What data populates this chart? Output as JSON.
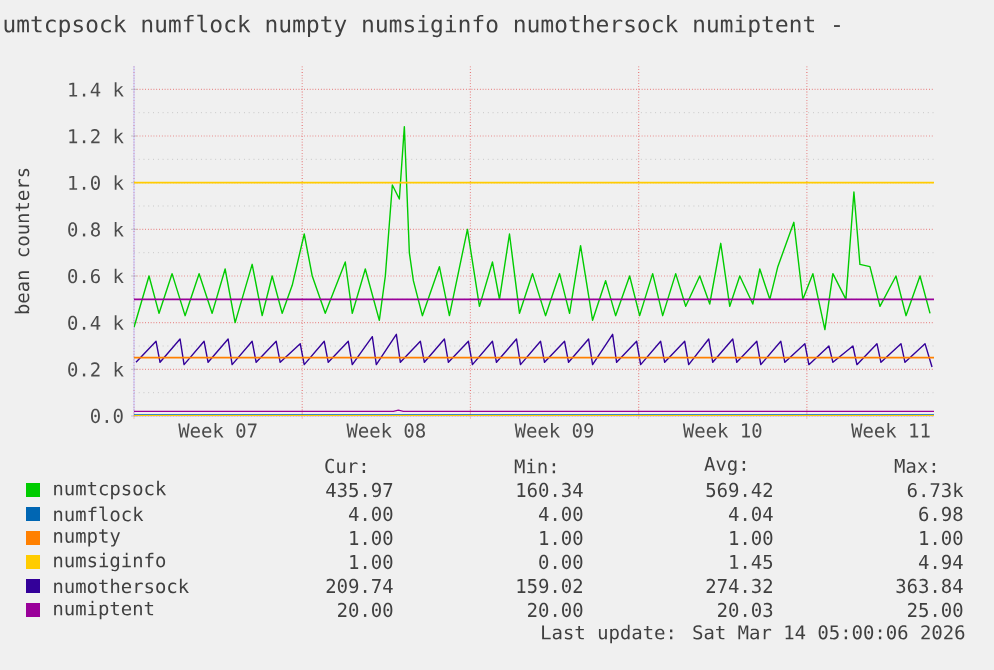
{
  "chart_data": {
    "type": "line",
    "title": "umtcpsock numflock numpty numsiginfo numothersock numiptent -",
    "ylabel": "bean counters",
    "xlim": [
      "2026-02-09T00:00",
      "2026-03-14T07:00"
    ],
    "xticks": [
      {
        "value": "2026-02-09T00:00",
        "label": null
      },
      {
        "value": "2026-02-12T12:00",
        "label": "Week 07"
      },
      {
        "value": "2026-02-16T00:00",
        "label": null
      },
      {
        "value": "2026-02-19T12:00",
        "label": "Week 08"
      },
      {
        "value": "2026-02-23T00:00",
        "label": null
      },
      {
        "value": "2026-02-26T12:00",
        "label": "Week 09"
      },
      {
        "value": "2026-03-02T00:00",
        "label": null
      },
      {
        "value": "2026-03-05T12:00",
        "label": "Week 10"
      },
      {
        "value": "2026-03-09T00:00",
        "label": null
      },
      {
        "value": "2026-03-12T12:00",
        "label": "Week 11"
      }
    ],
    "ylim": [
      0,
      1500
    ],
    "yticks": [
      {
        "value": 0,
        "label": "0.0"
      },
      {
        "value": 200,
        "label": "0.2 k"
      },
      {
        "value": 400,
        "label": "0.4 k"
      },
      {
        "value": 600,
        "label": "0.6 k"
      },
      {
        "value": 800,
        "label": "0.8 k"
      },
      {
        "value": 1000,
        "label": "1.0 k"
      },
      {
        "value": 1200,
        "label": "1.2 k"
      },
      {
        "value": 1400,
        "label": "1.4 k"
      }
    ],
    "grid": true,
    "legend": "bottom",
    "series": [
      {
        "name": "numtcpsock",
        "color": "#00cc00",
        "x": [
          "2026-02-09T00:00",
          "2026-02-09T15:00",
          "2026-02-10T01:00",
          "2026-02-10T14:00",
          "2026-02-11T03:00",
          "2026-02-11T17:00",
          "2026-02-12T06:00",
          "2026-02-12T19:00",
          "2026-02-13T05:00",
          "2026-02-13T22:00",
          "2026-02-14T08:00",
          "2026-02-14T18:00",
          "2026-02-15T04:00",
          "2026-02-15T14:00",
          "2026-02-16T02:00",
          "2026-02-16T10:00",
          "2026-02-16T23:00",
          "2026-02-17T19:00",
          "2026-02-18T02:00",
          "2026-02-18T15:00",
          "2026-02-19T05:00",
          "2026-02-19T11:00",
          "2026-02-19T18:00",
          "2026-02-20T01:00",
          "2026-02-20T06:00",
          "2026-02-20T11:00",
          "2026-02-20T15:00",
          "2026-02-21T00:00",
          "2026-02-21T17:00",
          "2026-02-22T03:00",
          "2026-02-22T21:00",
          "2026-02-23T09:00",
          "2026-02-23T22:00",
          "2026-02-24T05:00",
          "2026-02-24T15:00",
          "2026-02-25T01:00",
          "2026-02-25T14:00",
          "2026-02-26T03:00",
          "2026-02-26T17:00",
          "2026-02-27T03:00",
          "2026-02-27T14:00",
          "2026-02-28T02:00",
          "2026-02-28T15:00",
          "2026-03-01T01:00",
          "2026-03-01T15:00",
          "2026-03-02T01:00",
          "2026-03-02T14:00",
          "2026-03-03T00:00",
          "2026-03-03T13:00",
          "2026-03-03T23:00",
          "2026-03-04T13:00",
          "2026-03-04T23:00",
          "2026-03-05T10:00",
          "2026-03-05T19:00",
          "2026-03-06T05:00",
          "2026-03-06T18:00",
          "2026-03-07T01:00",
          "2026-03-07T11:00",
          "2026-03-07T19:00",
          "2026-03-08T11:00",
          "2026-03-08T20:00",
          "2026-03-09T06:00",
          "2026-03-09T18:00",
          "2026-03-10T02:00",
          "2026-03-10T15:00",
          "2026-03-10T23:00",
          "2026-03-11T05:00",
          "2026-03-11T15:00",
          "2026-03-12T01:00",
          "2026-03-12T17:00",
          "2026-03-13T03:00",
          "2026-03-13T17:00",
          "2026-03-14T03:00"
        ],
        "values": [
          380,
          600,
          440,
          610,
          430,
          610,
          440,
          630,
          400,
          650,
          430,
          600,
          440,
          560,
          780,
          600,
          440,
          660,
          440,
          630,
          410,
          600,
          990,
          930,
          1240,
          700,
          580,
          430,
          640,
          430,
          800,
          470,
          660,
          500,
          780,
          440,
          610,
          430,
          610,
          440,
          730,
          410,
          580,
          430,
          600,
          430,
          610,
          430,
          610,
          470,
          600,
          480,
          740,
          470,
          600,
          480,
          630,
          500,
          640,
          830,
          500,
          610,
          370,
          610,
          500,
          960,
          650,
          640,
          470,
          600,
          430,
          600,
          440
        ]
      },
      {
        "name": "numflock",
        "color": "#0066b3",
        "x": [
          "2026-02-09T00:00",
          "2026-03-14T07:00"
        ],
        "values": [
          4,
          4
        ]
      },
      {
        "name": "numpty",
        "color": "#ff8000",
        "values": [
          null
        ]
      },
      {
        "name": "numsiginfo",
        "color": "#ffcc00",
        "x": [
          "2026-02-09T00:00",
          "2026-03-14T07:00"
        ],
        "values": [
          1,
          1
        ]
      },
      {
        "name": "numothersock",
        "color": "#330099",
        "x": [
          "2026-02-09T02:00",
          "2026-02-09T22:00",
          "2026-02-10T02:00",
          "2026-02-10T22:00",
          "2026-02-11T02:00",
          "2026-02-11T22:00",
          "2026-02-12T02:00",
          "2026-02-12T22:00",
          "2026-02-13T02:00",
          "2026-02-13T22:00",
          "2026-02-14T02:00",
          "2026-02-14T22:00",
          "2026-02-15T02:00",
          "2026-02-15T22:00",
          "2026-02-16T02:00",
          "2026-02-16T22:00",
          "2026-02-17T02:00",
          "2026-02-17T22:00",
          "2026-02-18T02:00",
          "2026-02-18T22:00",
          "2026-02-19T02:00",
          "2026-02-19T22:00",
          "2026-02-20T02:00",
          "2026-02-20T22:00",
          "2026-02-21T02:00",
          "2026-02-21T22:00",
          "2026-02-22T02:00",
          "2026-02-22T22:00",
          "2026-02-23T02:00",
          "2026-02-23T22:00",
          "2026-02-24T02:00",
          "2026-02-24T22:00",
          "2026-02-25T02:00",
          "2026-02-25T22:00",
          "2026-02-26T02:00",
          "2026-02-26T22:00",
          "2026-02-27T02:00",
          "2026-02-27T22:00",
          "2026-02-28T02:00",
          "2026-02-28T22:00",
          "2026-03-01T02:00",
          "2026-03-01T22:00",
          "2026-03-02T02:00",
          "2026-03-02T22:00",
          "2026-03-03T02:00",
          "2026-03-03T22:00",
          "2026-03-04T02:00",
          "2026-03-04T22:00",
          "2026-03-05T02:00",
          "2026-03-05T22:00",
          "2026-03-06T02:00",
          "2026-03-06T22:00",
          "2026-03-07T02:00",
          "2026-03-07T22:00",
          "2026-03-08T02:00",
          "2026-03-08T22:00",
          "2026-03-09T02:00",
          "2026-03-09T22:00",
          "2026-03-10T02:00",
          "2026-03-10T22:00",
          "2026-03-11T02:00",
          "2026-03-11T22:00",
          "2026-03-12T02:00",
          "2026-03-12T22:00",
          "2026-03-13T02:00",
          "2026-03-13T22:00",
          "2026-03-14T05:00"
        ],
        "values": [
          230,
          320,
          230,
          330,
          220,
          320,
          230,
          330,
          220,
          320,
          230,
          320,
          230,
          310,
          220,
          320,
          230,
          320,
          220,
          340,
          220,
          350,
          230,
          320,
          230,
          330,
          230,
          320,
          220,
          320,
          230,
          330,
          220,
          320,
          230,
          320,
          230,
          330,
          220,
          350,
          230,
          320,
          220,
          320,
          230,
          320,
          220,
          330,
          230,
          330,
          230,
          320,
          220,
          320,
          230,
          310,
          220,
          300,
          230,
          300,
          220,
          310,
          230,
          310,
          230,
          310,
          210
        ]
      },
      {
        "name": "numiptent",
        "color": "#990099",
        "x": [
          "2026-02-09T00:00",
          "2026-02-19T19:00",
          "2026-02-20T00:00",
          "2026-02-20T05:00",
          "2026-03-14T07:00"
        ],
        "values": [
          20,
          20,
          25,
          20,
          20
        ]
      }
    ],
    "ref_lines": [
      {
        "axis": "y",
        "value": 1000,
        "color": "#ffcc00"
      },
      {
        "axis": "y",
        "value": 500,
        "color": "#990099"
      },
      {
        "axis": "y",
        "value": 250,
        "color": "#ff8000"
      }
    ],
    "annotations": [
      "Cur:",
      "Min:",
      "Avg:",
      "Max:",
      "435.97",
      "160.34",
      "569.42",
      "6.73k",
      "4.00",
      "4.00",
      "4.04",
      "6.98",
      "1.00",
      "1.00",
      "1.00",
      "1.00",
      "1.00",
      "0.00",
      "1.45",
      "4.94",
      "209.74",
      "159.02",
      "274.32",
      "363.84",
      "20.00",
      "20.00",
      "20.03",
      "25.00",
      "Last update: Sat Mar 14 05:00:06 2026"
    ]
  }
}
